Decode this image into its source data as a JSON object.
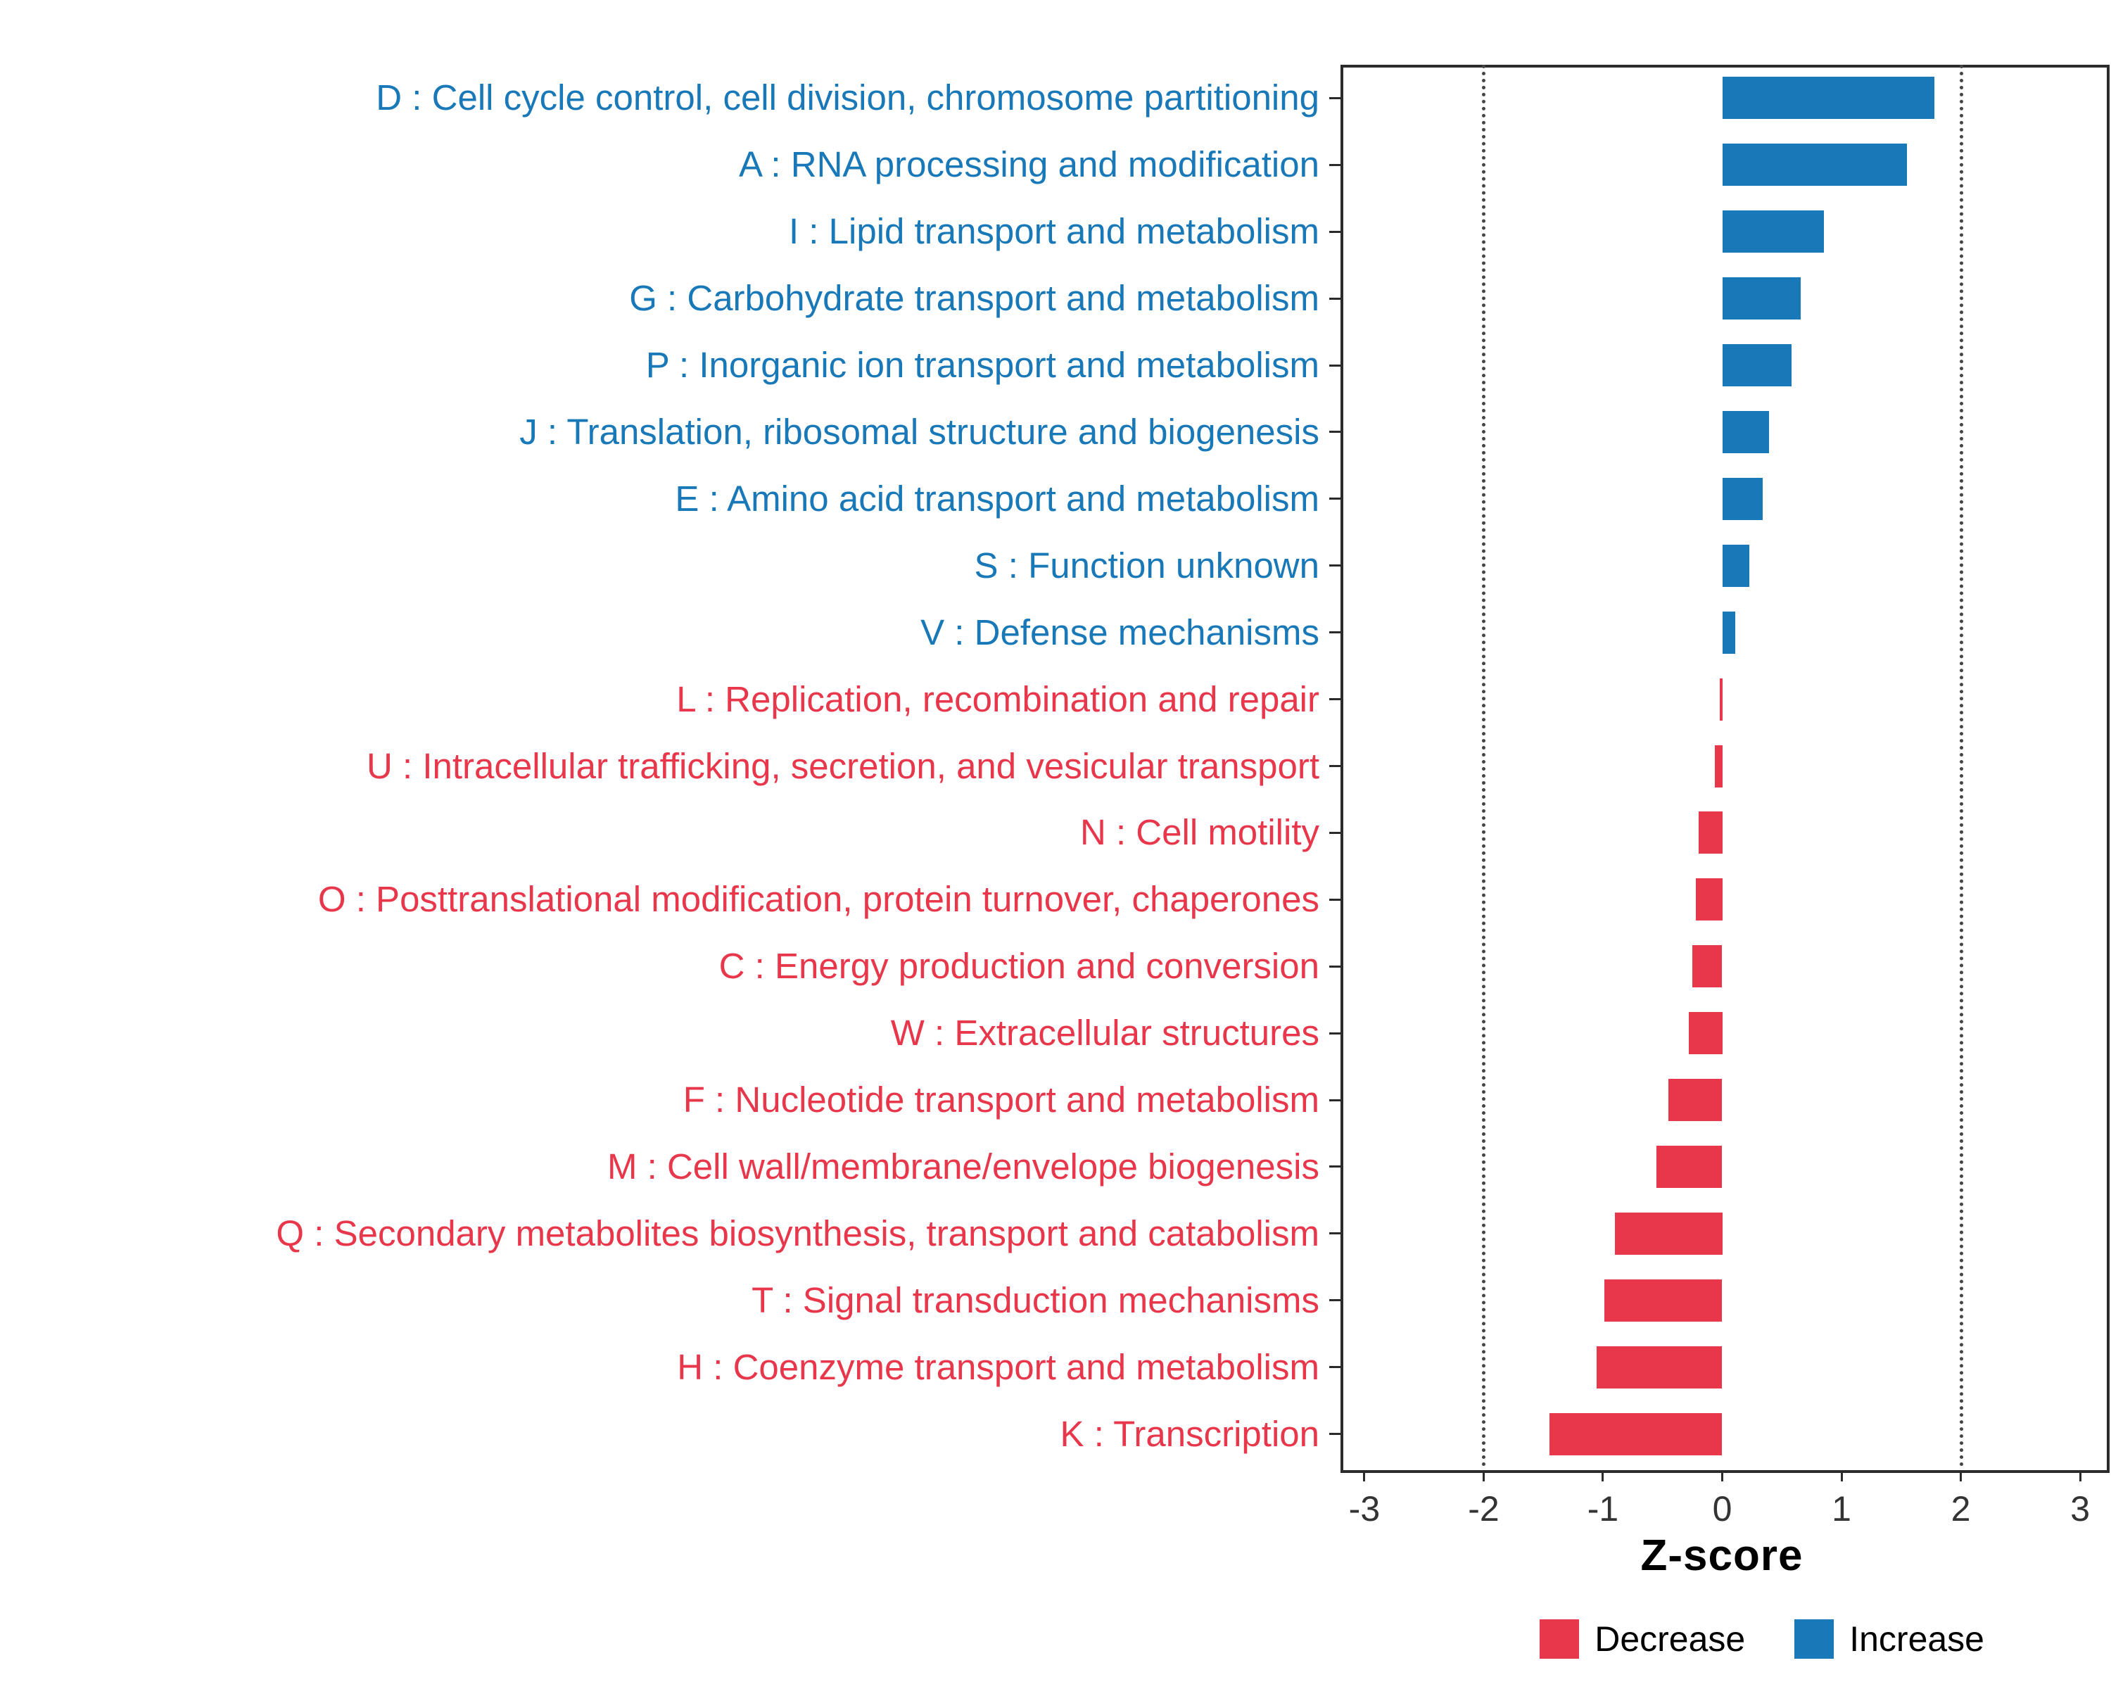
{
  "chart_data": {
    "type": "bar",
    "orientation": "horizontal",
    "title": "",
    "xlabel": "Z-score",
    "ylabel": "",
    "xlim": [
      -3,
      3
    ],
    "x_ticks": [
      -3,
      -2,
      -1,
      0,
      1,
      2,
      3
    ],
    "reference_lines": [
      -2,
      2
    ],
    "grid": "dotted vertical lines at -2 and 2 only",
    "legend_position": "bottom-right",
    "rows": [
      {
        "code": "D",
        "label": "D : Cell cycle control, cell division, chromosome partitioning",
        "value": 1.78,
        "direction": "increase"
      },
      {
        "code": "A",
        "label": "A : RNA processing and modification",
        "value": 1.55,
        "direction": "increase"
      },
      {
        "code": "I",
        "label": "I : Lipid transport and metabolism",
        "value": 0.85,
        "direction": "increase"
      },
      {
        "code": "G",
        "label": "G : Carbohydrate transport and metabolism",
        "value": 0.66,
        "direction": "increase"
      },
      {
        "code": "P",
        "label": "P : Inorganic ion transport and metabolism",
        "value": 0.58,
        "direction": "increase"
      },
      {
        "code": "J",
        "label": "J : Translation, ribosomal structure and biogenesis",
        "value": 0.39,
        "direction": "increase"
      },
      {
        "code": "E",
        "label": "E : Amino acid transport and metabolism",
        "value": 0.34,
        "direction": "increase"
      },
      {
        "code": "S",
        "label": "S : Function unknown",
        "value": 0.23,
        "direction": "increase"
      },
      {
        "code": "V",
        "label": "V : Defense mechanisms",
        "value": 0.11,
        "direction": "increase"
      },
      {
        "code": "L",
        "label": "L : Replication, recombination and repair",
        "value": -0.02,
        "direction": "decrease"
      },
      {
        "code": "U",
        "label": "U : Intracellular trafficking, secretion, and vesicular transport",
        "value": -0.06,
        "direction": "decrease"
      },
      {
        "code": "N",
        "label": "N : Cell motility",
        "value": -0.2,
        "direction": "decrease"
      },
      {
        "code": "O",
        "label": "O : Posttranslational modification, protein turnover, chaperones",
        "value": -0.22,
        "direction": "decrease"
      },
      {
        "code": "C",
        "label": "C : Energy production and conversion",
        "value": -0.25,
        "direction": "decrease"
      },
      {
        "code": "W",
        "label": "W : Extracellular structures",
        "value": -0.28,
        "direction": "decrease"
      },
      {
        "code": "F",
        "label": "F : Nucleotide transport and metabolism",
        "value": -0.45,
        "direction": "decrease"
      },
      {
        "code": "M",
        "label": "M : Cell wall/membrane/envelope biogenesis",
        "value": -0.55,
        "direction": "decrease"
      },
      {
        "code": "Q",
        "label": "Q : Secondary metabolites biosynthesis, transport and catabolism",
        "value": -0.9,
        "direction": "decrease"
      },
      {
        "code": "T",
        "label": "T : Signal transduction mechanisms",
        "value": -0.99,
        "direction": "decrease"
      },
      {
        "code": "H",
        "label": "H : Coenzyme transport and metabolism",
        "value": -1.05,
        "direction": "decrease"
      },
      {
        "code": "K",
        "label": "K : Transcription",
        "value": -1.45,
        "direction": "decrease"
      }
    ]
  },
  "colors": {
    "increase": "#1878B8",
    "decrease": "#E8374B",
    "axis_text": "#333333",
    "panel_border": "#2B2B2B"
  },
  "legend": {
    "items": [
      {
        "label": "Decrease",
        "color": "#E8374B"
      },
      {
        "label": "Increase",
        "color": "#1878B8"
      }
    ]
  }
}
